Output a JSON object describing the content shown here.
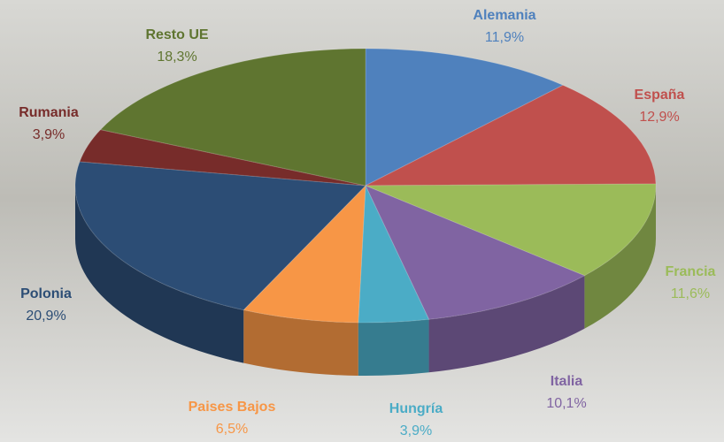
{
  "chart_data": {
    "type": "pie",
    "categories": [
      "Alemania",
      "España",
      "Francia",
      "Italia",
      "Hungría",
      "Paises Bajos",
      "Polonia",
      "Rumania",
      "Resto UE"
    ],
    "values": [
      11.9,
      12.9,
      11.6,
      10.1,
      3.9,
      6.5,
      20.9,
      3.9,
      18.3
    ],
    "value_labels": [
      "11,9%",
      "12,9%",
      "11,6%",
      "10,1%",
      "3,9%",
      "6,5%",
      "20,9%",
      "3,9%",
      "18,3%"
    ],
    "colors": [
      "#4f81bd",
      "#c0504d",
      "#9bbb59",
      "#8064a2",
      "#4bacc6",
      "#f79646",
      "#2c4d75",
      "#772c2a",
      "#5f7530"
    ]
  }
}
